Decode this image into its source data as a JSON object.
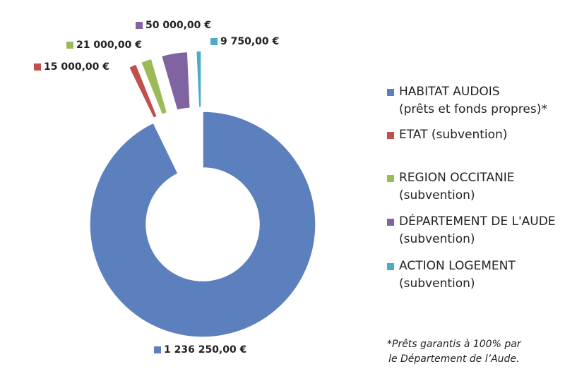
{
  "chart_data": {
    "type": "donut",
    "series": [
      {
        "name": "HABITAT AUDOIS\n(prêts et fonds propres)*",
        "color": "#5b80bd",
        "value": 1236250,
        "value_label": "1 236 250,00 €"
      },
      {
        "name": "ETAT (subvention)",
        "color": "#c0504d",
        "value": 15000,
        "value_label": "15 000,00 €"
      },
      {
        "name": "REGION OCCITANIE\n(subvention)",
        "color": "#9bbb59",
        "value": 21000,
        "value_label": "21 000,00 €"
      },
      {
        "name": "DÉPARTEMENT DE L'AUDE\n(subvention)",
        "color": "#8064a2",
        "value": 50000,
        "value_label": "50 000,00 €"
      },
      {
        "name": "ACTION LOGEMENT\n(subvention)",
        "color": "#4bacc6",
        "value": 9750,
        "value_label": "9 750,00 €"
      }
    ],
    "annotation": "*Prêts garantis à 100% par\nle Département de l’Aude."
  }
}
